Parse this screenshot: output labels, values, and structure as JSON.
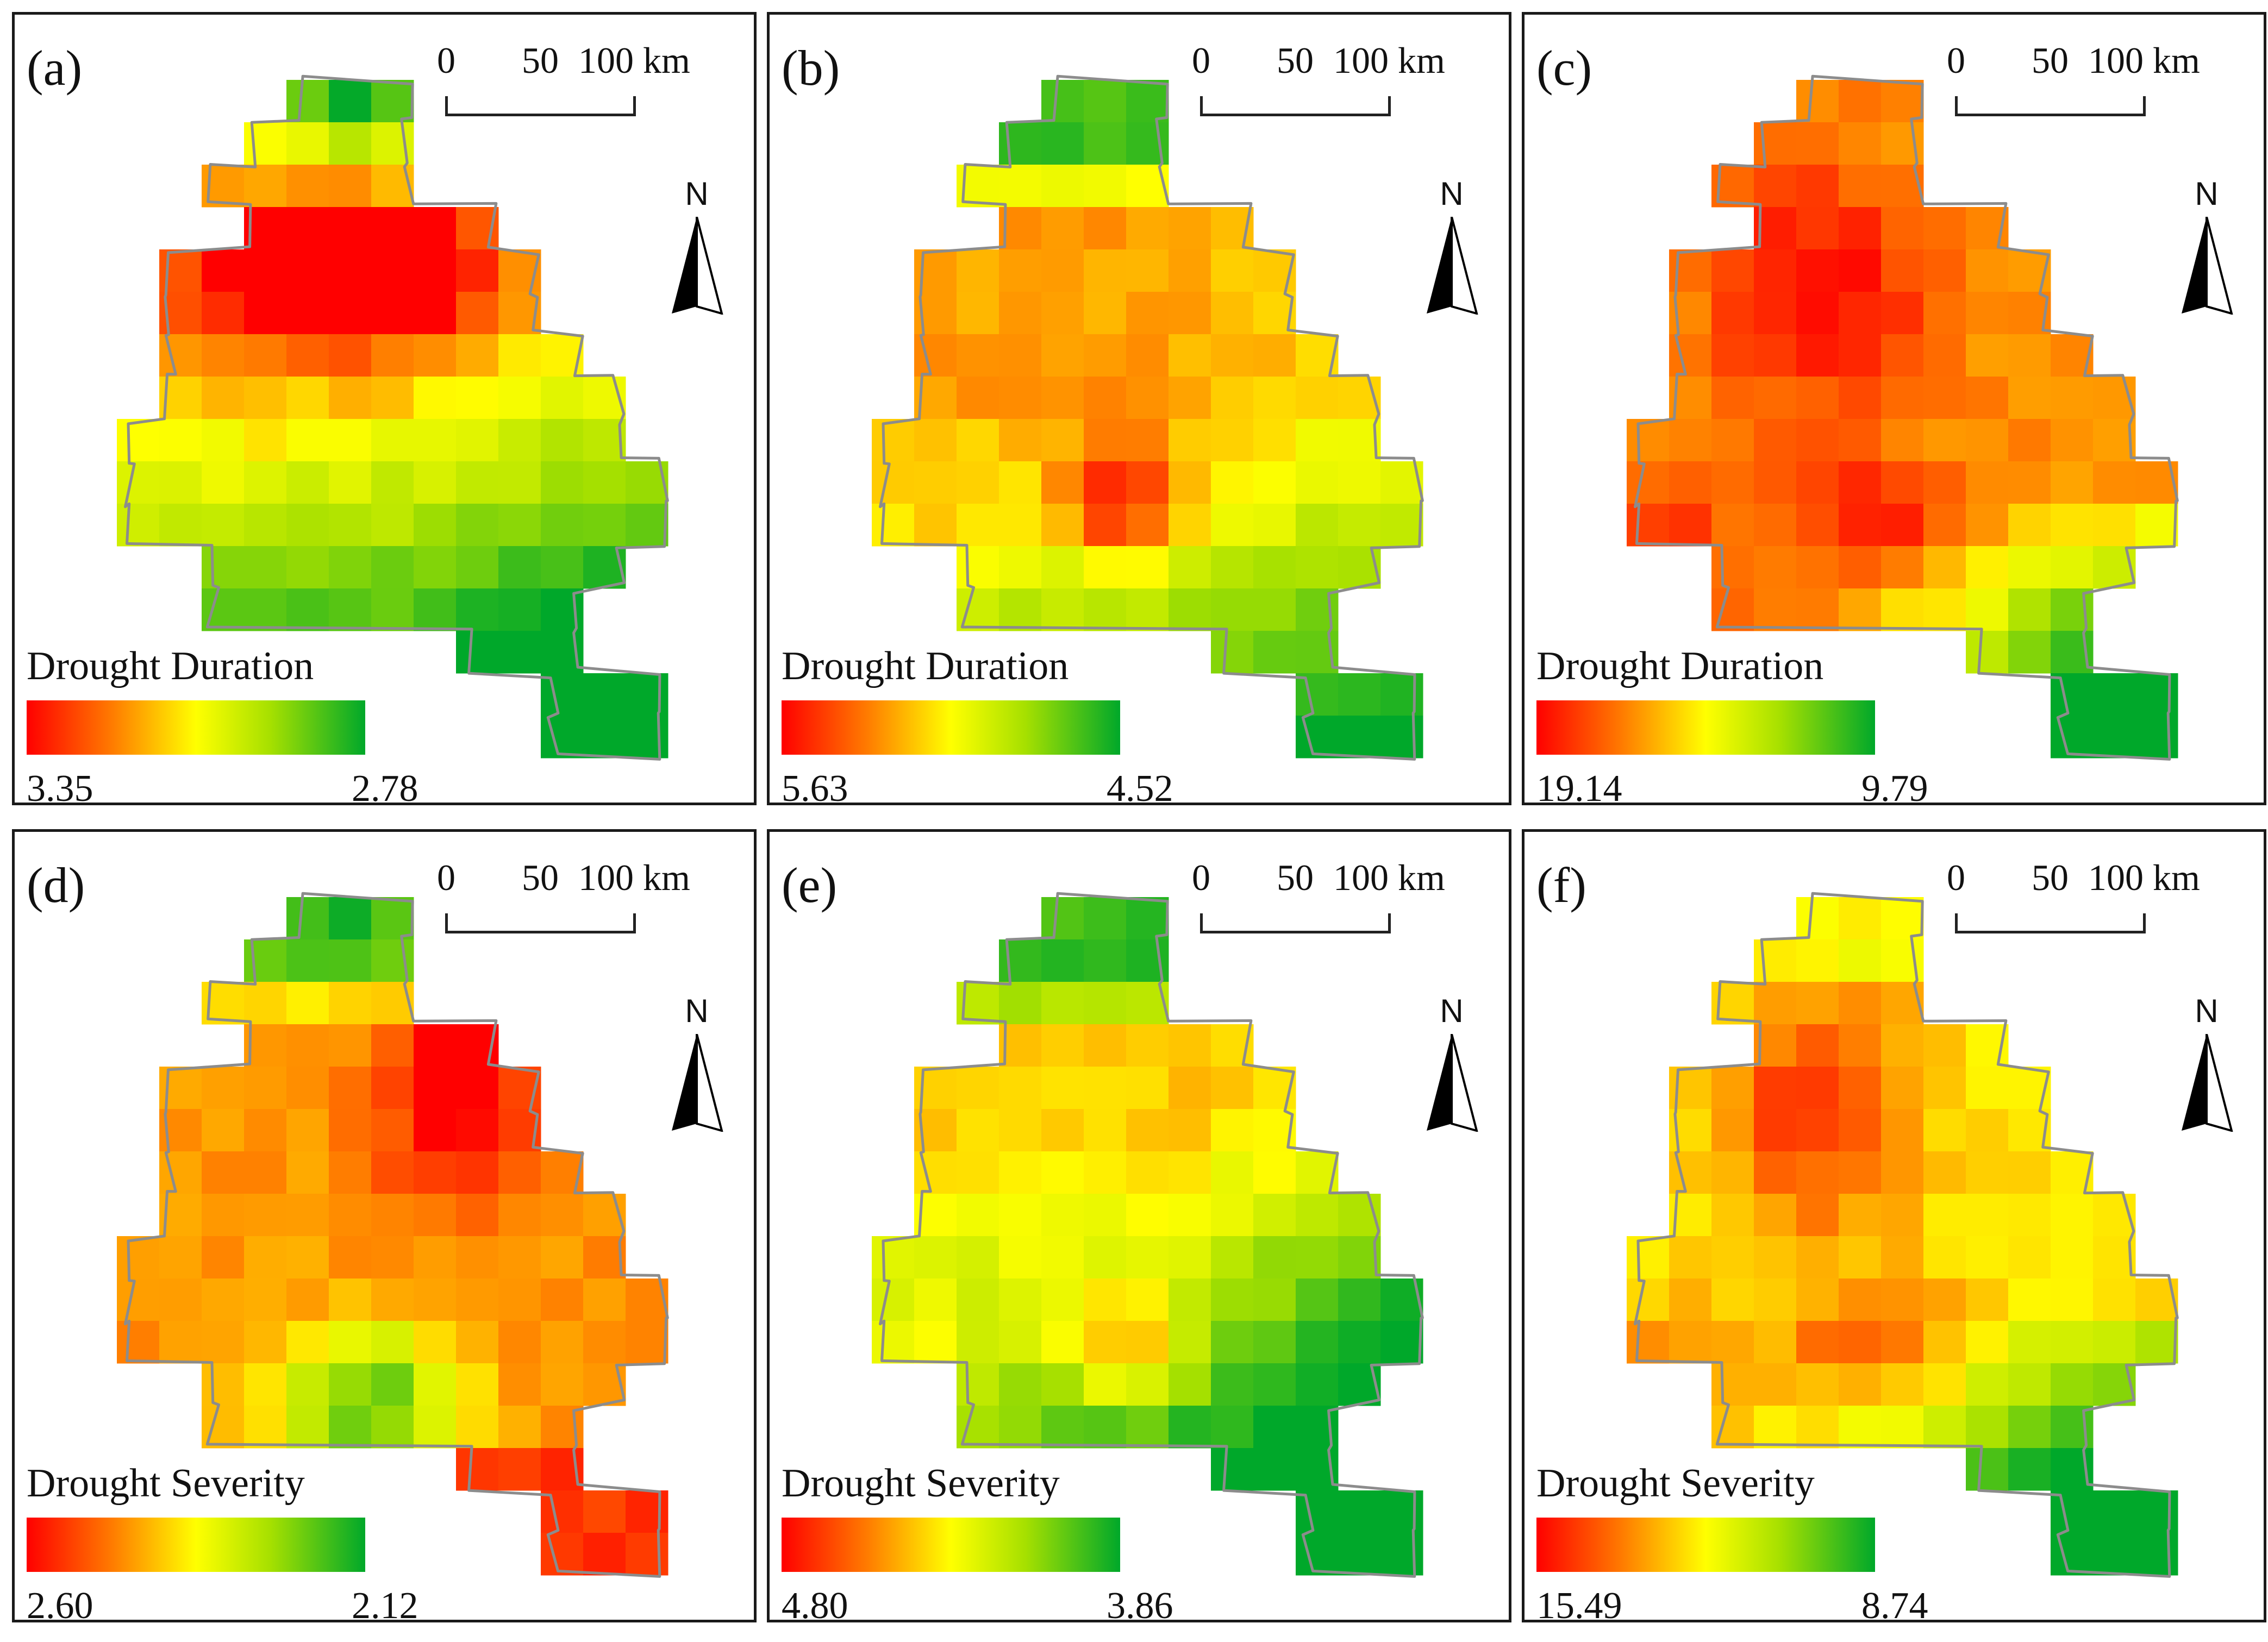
{
  "scale_bar": {
    "ticks": [
      "0",
      "50",
      "100 km"
    ]
  },
  "north_arrow": {
    "label": "N",
    "icon": "north-arrow-icon"
  },
  "colors": {
    "high": "#ff0000",
    "mid": "#ffff00",
    "low": "#00a82a",
    "boundary": "#8c8c8c"
  },
  "panels": [
    {
      "label": "(a)",
      "legend_title": "Drought Duration",
      "legend_min": "3.35",
      "legend_max": "2.78",
      "value_range": [
        2.78,
        3.35
      ]
    },
    {
      "label": "(b)",
      "legend_title": "Drought Duration",
      "legend_min": "5.63",
      "legend_max": "4.52",
      "value_range": [
        4.52,
        5.63
      ]
    },
    {
      "label": "(c)",
      "legend_title": "Drought Duration",
      "legend_min": "19.14",
      "legend_max": "9.79",
      "value_range": [
        9.79,
        19.14
      ]
    },
    {
      "label": "(d)",
      "legend_title": "Drought Severity",
      "legend_min": "2.60",
      "legend_max": "2.12",
      "value_range": [
        2.12,
        2.6
      ]
    },
    {
      "label": "(e)",
      "legend_title": "Drought Severity",
      "legend_min": "4.80",
      "legend_max": "3.86",
      "value_range": [
        3.86,
        4.8
      ]
    },
    {
      "label": "(f)",
      "legend_title": "Drought Severity",
      "legend_min": "15.49",
      "legend_max": "8.74",
      "value_range": [
        8.74,
        15.49
      ]
    }
  ]
}
